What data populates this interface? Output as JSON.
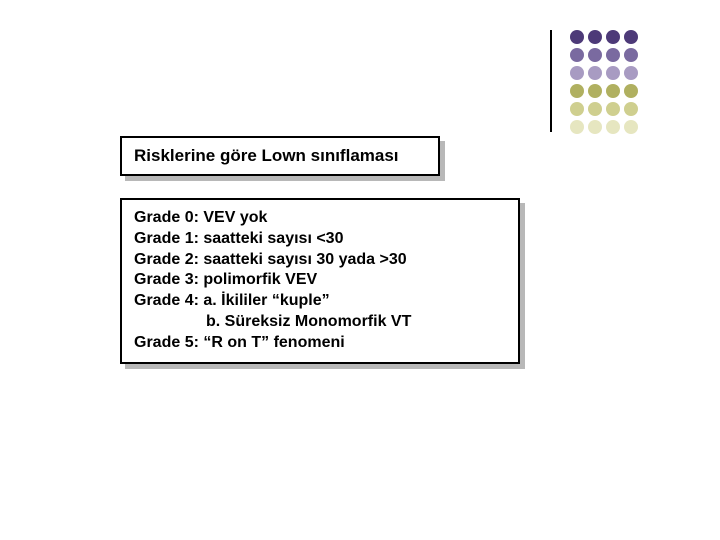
{
  "decor": {
    "line_color": "#000000",
    "dot_colors_by_row": [
      "#4d3a78",
      "#7a6aa0",
      "#a89bc2",
      "#b0b060",
      "#cfcf8f",
      "#e6e6c0"
    ],
    "rows": 6,
    "cols": 4
  },
  "title": "Risklerine göre Lown sınıflaması",
  "lines": [
    {
      "text": "Grade 0: VEV yok",
      "indent": false
    },
    {
      "text": "Grade 1: saatteki sayısı <30",
      "indent": false
    },
    {
      "text": "Grade 2: saatteki sayısı 30 yada >30",
      "indent": false
    },
    {
      "text": "Grade 3: polimorfik VEV",
      "indent": false
    },
    {
      "text": "Grade 4: a. İkililer “kuple”",
      "indent": false
    },
    {
      "text": "b. Süreksiz Monomorfik VT",
      "indent": true
    },
    {
      "text": "Grade 5: “R on T” fenomeni",
      "indent": false
    }
  ],
  "style": {
    "background": "#ffffff",
    "border_color": "#000000",
    "shadow_color": "#b8b8b8",
    "font_family": "Arial",
    "title_fontsize": 17,
    "body_fontsize": 16,
    "font_weight": "bold"
  }
}
